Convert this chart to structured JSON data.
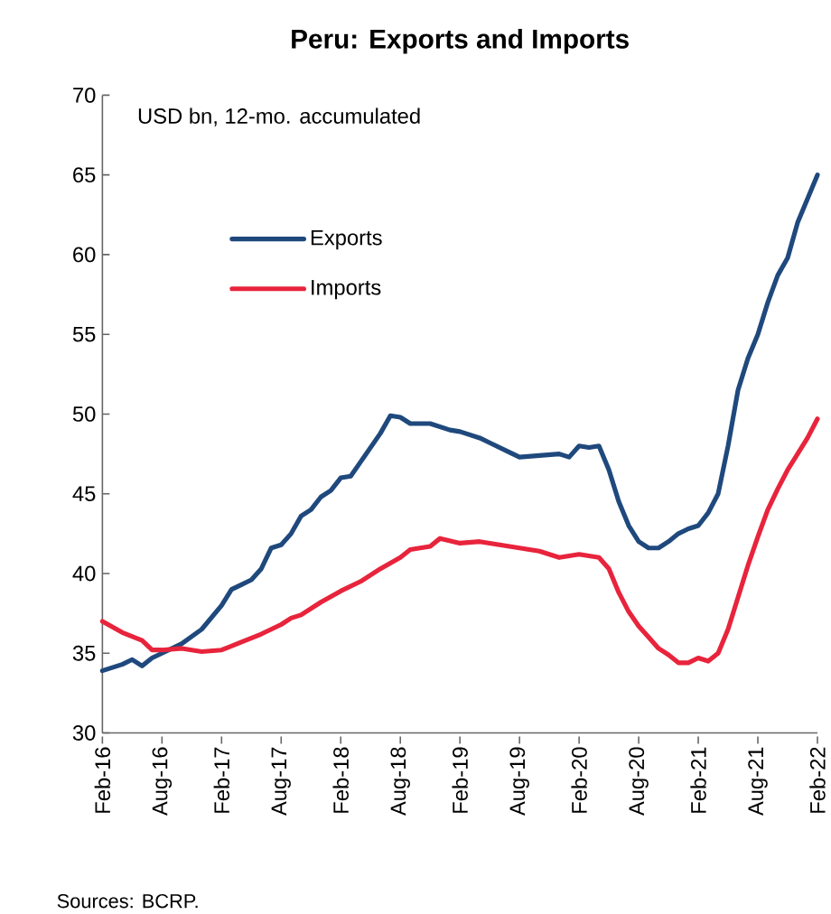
{
  "chart_data": {
    "type": "line",
    "title": "Peru: Exports and Imports",
    "subtitle": "USD bn, 12-mo. accumulated",
    "annotations": [
      "Sources: BCRP."
    ],
    "xlim": [
      "2016-02",
      "2022-02"
    ],
    "ylim": [
      30,
      70
    ],
    "yticks": [
      30,
      35,
      40,
      45,
      50,
      55,
      60,
      65,
      70
    ],
    "xticks": [
      {
        "value": "2016-02",
        "label": "Feb-16"
      },
      {
        "value": "2016-08",
        "label": "Aug-16"
      },
      {
        "value": "2017-02",
        "label": "Feb-17"
      },
      {
        "value": "2017-08",
        "label": "Aug-17"
      },
      {
        "value": "2018-02",
        "label": "Feb-18"
      },
      {
        "value": "2018-08",
        "label": "Aug-18"
      },
      {
        "value": "2019-02",
        "label": "Feb-19"
      },
      {
        "value": "2019-08",
        "label": "Aug-19"
      },
      {
        "value": "2020-02",
        "label": "Feb-20"
      },
      {
        "value": "2020-08",
        "label": "Aug-20"
      },
      {
        "value": "2021-02",
        "label": "Feb-21"
      },
      {
        "value": "2021-08",
        "label": "Aug-21"
      },
      {
        "value": "2022-02",
        "label": "Feb-22"
      }
    ],
    "legend": "top left",
    "grid": false,
    "marker": "none",
    "line_style": "solid",
    "series": [
      {
        "name": "Exports",
        "color": "#1f497d",
        "x": [
          "2016-02",
          "2016-04",
          "2016-05",
          "2016-06",
          "2016-07",
          "2016-08",
          "2016-10",
          "2016-12",
          "2017-02",
          "2017-03",
          "2017-04",
          "2017-05",
          "2017-06",
          "2017-07",
          "2017-08",
          "2017-09",
          "2017-10",
          "2017-11",
          "2017-12",
          "2018-01",
          "2018-02",
          "2018-03",
          "2018-04",
          "2018-06",
          "2018-07",
          "2018-08",
          "2018-09",
          "2018-11",
          "2019-01",
          "2019-02",
          "2019-04",
          "2019-05",
          "2019-07",
          "2019-08",
          "2019-10",
          "2019-12",
          "2020-01",
          "2020-02",
          "2020-03",
          "2020-04",
          "2020-05",
          "2020-06",
          "2020-07",
          "2020-08",
          "2020-09",
          "2020-10",
          "2020-11",
          "2020-12",
          "2021-01",
          "2021-02",
          "2021-03",
          "2021-04",
          "2021-05",
          "2021-06",
          "2021-07",
          "2021-08",
          "2021-09",
          "2021-10",
          "2021-11",
          "2021-12",
          "2022-01",
          "2022-02"
        ],
        "values": [
          33.9,
          34.3,
          34.6,
          34.2,
          34.7,
          35.0,
          35.6,
          36.5,
          38.0,
          39.0,
          39.3,
          39.6,
          40.3,
          41.6,
          41.8,
          42.5,
          43.6,
          44.0,
          44.8,
          45.2,
          46.0,
          46.1,
          47.0,
          48.8,
          49.9,
          49.8,
          49.4,
          49.4,
          49.0,
          48.9,
          48.5,
          48.2,
          47.6,
          47.3,
          47.4,
          47.5,
          47.3,
          48.0,
          47.9,
          48.0,
          46.5,
          44.5,
          43.0,
          42.0,
          41.6,
          41.6,
          42.0,
          42.5,
          42.8,
          43.0,
          43.8,
          45.0,
          48.0,
          51.5,
          53.5,
          55.0,
          57.0,
          58.7,
          59.8,
          62.0,
          63.5,
          65.0
        ]
      },
      {
        "name": "Imports",
        "color": "#e8243c",
        "x": [
          "2016-02",
          "2016-04",
          "2016-06",
          "2016-07",
          "2016-08",
          "2016-10",
          "2016-12",
          "2017-02",
          "2017-04",
          "2017-06",
          "2017-08",
          "2017-09",
          "2017-10",
          "2017-12",
          "2018-02",
          "2018-04",
          "2018-06",
          "2018-08",
          "2018-09",
          "2018-11",
          "2018-12",
          "2019-02",
          "2019-04",
          "2019-06",
          "2019-08",
          "2019-10",
          "2019-12",
          "2020-02",
          "2020-04",
          "2020-05",
          "2020-06",
          "2020-07",
          "2020-08",
          "2020-09",
          "2020-10",
          "2020-11",
          "2020-12",
          "2021-01",
          "2021-02",
          "2021-03",
          "2021-04",
          "2021-05",
          "2021-06",
          "2021-07",
          "2021-08",
          "2021-09",
          "2021-10",
          "2021-11",
          "2021-12",
          "2022-01",
          "2022-02"
        ],
        "values": [
          37.0,
          36.3,
          35.8,
          35.2,
          35.2,
          35.3,
          35.1,
          35.2,
          35.7,
          36.2,
          36.8,
          37.2,
          37.4,
          38.2,
          38.9,
          39.5,
          40.3,
          41.0,
          41.5,
          41.7,
          42.2,
          41.9,
          42.0,
          41.8,
          41.6,
          41.4,
          41.0,
          41.2,
          41.0,
          40.3,
          38.8,
          37.6,
          36.7,
          36.0,
          35.3,
          34.9,
          34.4,
          34.4,
          34.7,
          34.5,
          35.0,
          36.5,
          38.5,
          40.5,
          42.3,
          44.0,
          45.3,
          46.5,
          47.5,
          48.5,
          49.7
        ]
      }
    ]
  }
}
